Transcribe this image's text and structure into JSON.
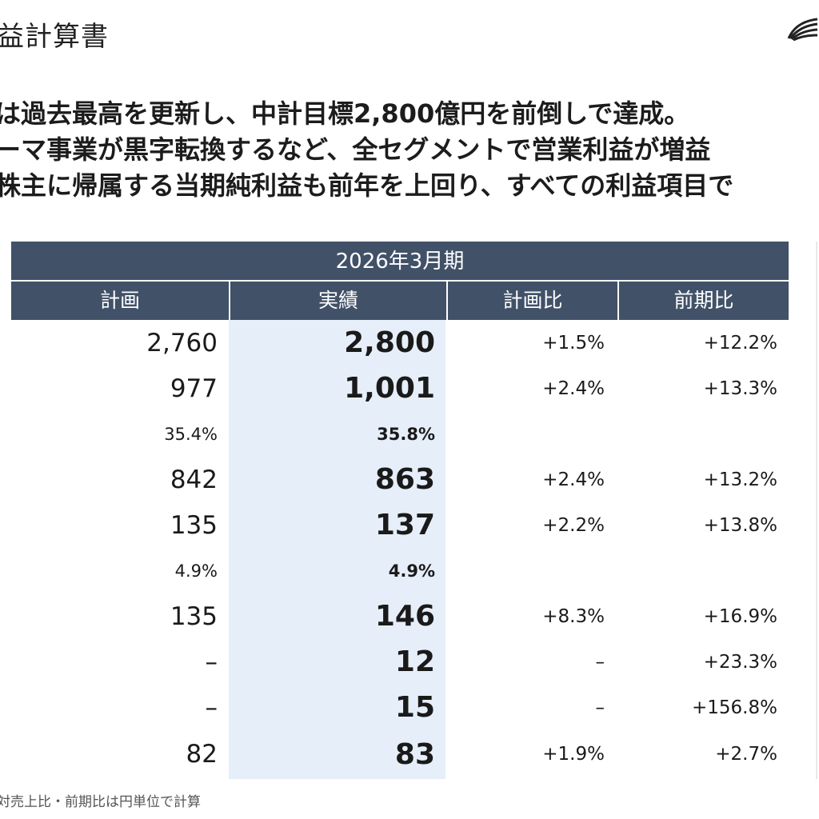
{
  "header": {
    "title": "益計算書"
  },
  "summary": [
    "は過去最高を更新し、中計目標2,800億円を前倒しで達成。",
    "ーマ事業が黒字転換するなど、全セグメントで営業利益が増益",
    "株主に帰属する当期純利益も前年を上回り、すべての利益項目で"
  ],
  "table": {
    "period": "2026年3月期",
    "columns": [
      "計画",
      "実績",
      "計画比",
      "前期比"
    ],
    "rows": [
      {
        "plan": "2,760",
        "actual": "2,800",
        "vs_plan": "+1.5%",
        "vs_prev": "+12.2%"
      },
      {
        "plan": "977",
        "actual": "1,001",
        "vs_plan": "+2.4%",
        "vs_prev": "+13.3%"
      },
      {
        "plan": "35.4%",
        "actual": "35.8%",
        "vs_plan": "",
        "vs_prev": ""
      },
      {
        "plan": "842",
        "actual": "863",
        "vs_plan": "+2.4%",
        "vs_prev": "+13.2%"
      },
      {
        "plan": "135",
        "actual": "137",
        "vs_plan": "+2.2%",
        "vs_prev": "+13.8%"
      },
      {
        "plan": "4.9%",
        "actual": "4.9%",
        "vs_plan": "",
        "vs_prev": ""
      },
      {
        "plan": "135",
        "actual": "146",
        "vs_plan": "+8.3%",
        "vs_prev": "+16.9%"
      },
      {
        "plan": "–",
        "actual": "12",
        "vs_plan": "–",
        "vs_prev": "+23.3%"
      },
      {
        "plan": "–",
        "actual": "15",
        "vs_plan": "–",
        "vs_prev": "+156.8%"
      },
      {
        "plan": "82",
        "actual": "83",
        "vs_plan": "+1.9%",
        "vs_prev": "+2.7%"
      }
    ]
  },
  "footnote": "対売上比・前期比は円単位で計算",
  "colors": {
    "header_bg": "#415168",
    "highlight": "#e6eef9"
  },
  "icons": {
    "logo": "leaf-logo-icon"
  }
}
